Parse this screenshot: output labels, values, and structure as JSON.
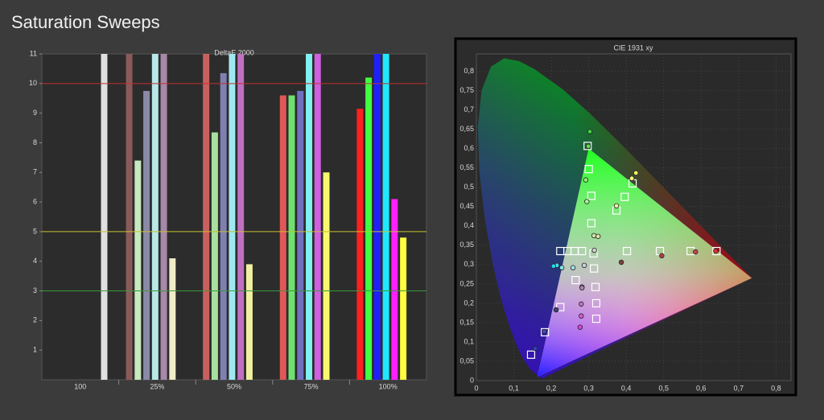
{
  "title": "Saturation Sweeps",
  "chart_data": [
    {
      "type": "bar",
      "title": "DeltaE 2000",
      "categories": [
        "100",
        "25%",
        "50%",
        "75%",
        "100%"
      ],
      "ylim": [
        0,
        11
      ],
      "yticks": [
        1,
        2,
        3,
        4,
        5,
        6,
        7,
        8,
        9,
        10,
        11
      ],
      "thresholds": [
        {
          "value": 10,
          "color": "#c03030"
        },
        {
          "value": 5,
          "color": "#c8c030"
        },
        {
          "value": 3,
          "color": "#3a9a3a"
        }
      ],
      "series": [
        {
          "colors": [
            null,
            "#8a5a5a",
            "#c86060",
            "#e05858",
            "#ff2020"
          ],
          "values": [
            null,
            11,
            11,
            9.6,
            9.15
          ]
        },
        {
          "colors": [
            null,
            "#c8e8c0",
            "#a8e0a0",
            "#70e070",
            "#40ff40"
          ],
          "values": [
            null,
            7.4,
            8.35,
            9.6,
            10.2
          ]
        },
        {
          "colors": [
            null,
            "#8a8aa8",
            "#8080b0",
            "#7070c0",
            "#2020ff"
          ],
          "values": [
            null,
            9.75,
            10.35,
            9.75,
            11
          ]
        },
        {
          "colors": [
            null,
            "#b8e8e8",
            "#a0e8f0",
            "#80f0f0",
            "#20e8ff"
          ],
          "values": [
            null,
            11,
            11,
            11,
            11
          ]
        },
        {
          "colors": [
            null,
            "#a888a8",
            "#c070c0",
            "#d060e0",
            "#ff20ff"
          ],
          "values": [
            null,
            11,
            11,
            11,
            6.1
          ]
        },
        {
          "colors": [
            null,
            "#f0ecc8",
            "#f0f0a0",
            "#f8f870",
            "#ffff40"
          ],
          "values": [
            null,
            4.1,
            3.9,
            7.0,
            4.8
          ]
        },
        {
          "colors": [
            "#e0e0e0",
            null,
            null,
            null,
            null
          ],
          "values": [
            11,
            null,
            null,
            null,
            null
          ]
        }
      ]
    },
    {
      "type": "scatter",
      "title": "CIE 1931 xy",
      "xlim": [
        0,
        0.84
      ],
      "ylim": [
        0,
        0.845
      ],
      "grid": true,
      "xticks": [
        0,
        {
          "value": 0.1,
          "label": "0,1"
        },
        {
          "value": 0.2,
          "label": "0,2"
        },
        {
          "value": 0.3,
          "label": "0,3"
        },
        {
          "value": 0.4,
          "label": "0,4"
        },
        {
          "value": 0.5,
          "label": "0,5"
        },
        {
          "value": 0.6,
          "label": "0,6"
        },
        {
          "value": 0.7,
          "label": "0,7"
        },
        {
          "value": 0.8,
          "label": "0,8"
        }
      ],
      "yticks": [
        0,
        {
          "value": 0.05,
          "label": "0,05"
        },
        {
          "value": 0.1,
          "label": "0,1"
        },
        {
          "value": 0.15,
          "label": "0,15"
        },
        {
          "value": 0.2,
          "label": "0,2"
        },
        {
          "value": 0.25,
          "label": "0,25"
        },
        {
          "value": 0.3,
          "label": "0,3"
        },
        {
          "value": 0.35,
          "label": "0,35"
        },
        {
          "value": 0.4,
          "label": "0,4"
        },
        {
          "value": 0.45,
          "label": "0,45"
        },
        {
          "value": 0.5,
          "label": "0,5"
        },
        {
          "value": 0.55,
          "label": "0,55"
        },
        {
          "value": 0.6,
          "label": "0,6"
        },
        {
          "value": 0.65,
          "label": "0,65"
        },
        {
          "value": 0.7,
          "label": "0,7"
        },
        {
          "value": 0.75,
          "label": "0,75"
        },
        {
          "value": 0.8,
          "label": "0,8"
        }
      ],
      "series": [
        {
          "marker": "square",
          "color": "#ffffff",
          "x": [
            0.3127,
            0.402,
            0.49,
            0.572,
            0.641,
            0.307,
            0.307,
            0.3,
            0.297,
            0.265,
            0.224,
            0.183,
            0.146,
            0.224,
            0.243,
            0.262,
            0.282,
            0.314,
            0.318,
            0.32,
            0.32,
            0.374,
            0.396,
            0.417
          ],
          "y": [
            0.329,
            0.335,
            0.335,
            0.335,
            0.335,
            0.407,
            0.478,
            0.547,
            0.607,
            0.26,
            0.19,
            0.125,
            0.067,
            0.335,
            0.335,
            0.335,
            0.335,
            0.29,
            0.242,
            0.2,
            0.16,
            0.44,
            0.475,
            0.51
          ]
        },
        {
          "marker": "circle",
          "colors": [
            "#d0d0d0",
            "#804040",
            "#b04050",
            "#d04050",
            "#e03030",
            "#c8e8a0",
            "#b0f0a0",
            "#90f070",
            "#60e050",
            "#40d040",
            "#d0d0e0",
            "#9090c0",
            "#404080",
            "#4050b0",
            "#3040c0",
            "#a0e0e8",
            "#80e8f0",
            "#40e0f0",
            "#20d8f0",
            "#b080b0",
            "#c070c0",
            "#d060d0",
            "#e040e0",
            "#e0e0a0",
            "#f0f0a0",
            "#f8f880",
            "#ffff60"
          ],
          "x": [
            0.315,
            0.387,
            0.495,
            0.585,
            0.639,
            0.314,
            0.295,
            0.292,
            0.299,
            0.303,
            0.288,
            0.282,
            0.213,
            0.181,
            0.157,
            0.258,
            0.228,
            0.215,
            0.206,
            0.282,
            0.28,
            0.28,
            0.277,
            0.325,
            0.374,
            0.415,
            0.426
          ],
          "y": [
            0.337,
            0.306,
            0.323,
            0.333,
            0.335,
            0.375,
            0.463,
            0.519,
            0.606,
            0.644,
            0.298,
            0.242,
            0.183,
            0.127,
            0.083,
            0.292,
            0.292,
            0.298,
            0.296,
            0.24,
            0.198,
            0.167,
            0.138,
            0.373,
            0.452,
            0.523,
            0.537
          ]
        }
      ]
    }
  ]
}
